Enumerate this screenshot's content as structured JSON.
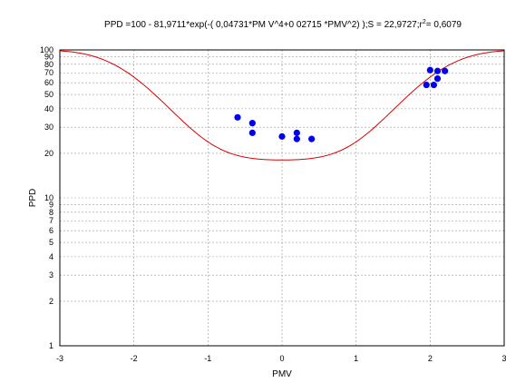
{
  "chart_data": {
    "type": "scatter",
    "title": "PPD =100 - 81,9711*exp(-( 0,04731*PM V^4+0 02715 *PMV^2) );S = 22,9727;r",
    "title_sup": "2",
    "title_tail": "= 0,6079",
    "xlabel": "PMV",
    "ylabel": "PPD",
    "xlim": [
      -3,
      3
    ],
    "ylim": [
      1,
      100
    ],
    "y_scale": "log",
    "grid": true,
    "x_ticks": [
      -3,
      -2,
      -1,
      0,
      1,
      2,
      3
    ],
    "y_ticks": [
      1,
      2,
      3,
      4,
      5,
      6,
      7,
      8,
      9,
      10,
      20,
      30,
      40,
      50,
      60,
      70,
      80,
      90,
      100
    ],
    "series": [
      {
        "kind": "points",
        "color": "#0000ee",
        "points": [
          [
            -0.6,
            35
          ],
          [
            -0.4,
            32
          ],
          [
            -0.4,
            27.5
          ],
          [
            0.0,
            26
          ],
          [
            0.2,
            27.5
          ],
          [
            0.2,
            25
          ],
          [
            0.4,
            25
          ],
          [
            1.95,
            58
          ],
          [
            2.0,
            73
          ],
          [
            2.05,
            58
          ],
          [
            2.1,
            64
          ],
          [
            2.1,
            72
          ],
          [
            2.2,
            72
          ]
        ]
      },
      {
        "kind": "fit-curve",
        "color": "#dd0000",
        "coefficients": {
          "a": 100,
          "b": 81.9711,
          "c4": 0.04731,
          "c2": 0.02715
        }
      }
    ]
  }
}
